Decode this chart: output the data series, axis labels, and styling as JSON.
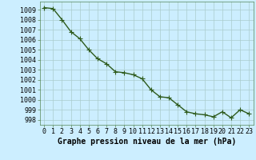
{
  "x": [
    0,
    1,
    2,
    3,
    4,
    5,
    6,
    7,
    8,
    9,
    10,
    11,
    12,
    13,
    14,
    15,
    16,
    17,
    18,
    19,
    20,
    21,
    22,
    23
  ],
  "y": [
    1009.2,
    1009.1,
    1008.0,
    1006.8,
    1006.1,
    1005.0,
    1004.1,
    1003.6,
    1002.8,
    1002.7,
    1002.5,
    1002.1,
    1001.0,
    1000.3,
    1000.2,
    999.5,
    998.8,
    998.6,
    998.5,
    998.3,
    998.8,
    998.2,
    999.0,
    998.6
  ],
  "line_color": "#2d5a1b",
  "marker": "+",
  "marker_size": 4,
  "marker_color": "#2d5a1b",
  "bg_color": "#cceeff",
  "grid_color": "#aacccc",
  "xlabel": "Graphe pression niveau de la mer (hPa)",
  "xlabel_fontsize": 7,
  "ylabel_ticks": [
    998,
    999,
    1000,
    1001,
    1002,
    1003,
    1004,
    1005,
    1006,
    1007,
    1008,
    1009
  ],
  "ylim": [
    997.5,
    1009.8
  ],
  "xlim": [
    -0.5,
    23.5
  ],
  "tick_fontsize": 6,
  "line_width": 1.0
}
